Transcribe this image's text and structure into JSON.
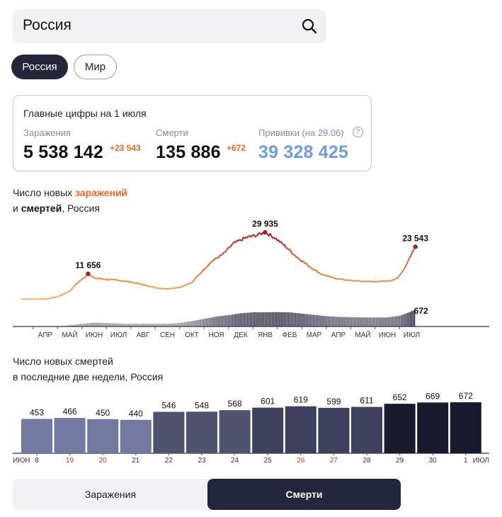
{
  "search": {
    "value": "Россия"
  },
  "chips": {
    "active": "Россия",
    "inactive": "Мир"
  },
  "stats": {
    "title": "Главные цифры на 1 июля",
    "infections": {
      "label": "Заражения",
      "value": "5 538 142",
      "delta": "+23 543"
    },
    "deaths": {
      "label": "Смерти",
      "value": "135 886",
      "delta": "+672"
    },
    "vaccinations": {
      "label": "Прививки (на 29.06)",
      "value": "39 328 425",
      "help": "?"
    }
  },
  "chart1_title": {
    "line1_prefix": "Число новых ",
    "line1_accent": "заражений",
    "line2_prefix": "и ",
    "line2_bold": "смертей",
    "line2_suffix": ", Россия"
  },
  "chart2_title": {
    "line1": "Число новых смертей",
    "line2": "в последние две недели, Россия"
  },
  "tabs": {
    "infections": "Заражения",
    "deaths": "Смерти"
  },
  "colors": {
    "dark": "#23253d",
    "orange": "#e06a2c",
    "vax": "#6f9bd8",
    "weekend": "#c0392b"
  },
  "chart_data": [
    {
      "type": "line",
      "title": "Число новых заражений и смертей, Россия",
      "x_ticks": [
        "АПР",
        "МАЙ",
        "ИЮН",
        "ИЮЛ",
        "АВГ",
        "СЕН",
        "ОКТ",
        "НОЯ",
        "ДЕК",
        "ЯНВ",
        "ФЕВ",
        "МАР",
        "АПР",
        "МАЙ",
        "ИЮН",
        "ИЮЛ"
      ],
      "series": [
        {
          "name": "заражений",
          "points": [
            [
              0,
              500
            ],
            [
              0.5,
              1500
            ],
            [
              1,
              4000
            ],
            [
              1.3,
              7500
            ],
            [
              1.6,
              10000
            ],
            [
              1.75,
              11656
            ],
            [
              2,
              9800
            ],
            [
              2.5,
              9200
            ],
            [
              3,
              8800
            ],
            [
              3.5,
              8000
            ],
            [
              4,
              6900
            ],
            [
              4.5,
              5500
            ],
            [
              5,
              5000
            ],
            [
              5.5,
              5700
            ],
            [
              6,
              7800
            ],
            [
              6.4,
              12500
            ],
            [
              6.8,
              17000
            ],
            [
              7.3,
              20500
            ],
            [
              7.7,
              25000
            ],
            [
              8.2,
              27500
            ],
            [
              8.7,
              28800
            ],
            [
              9.0,
              29935
            ],
            [
              9.4,
              27500
            ],
            [
              9.8,
              24000
            ],
            [
              10.3,
              19000
            ],
            [
              10.8,
              15000
            ],
            [
              11.3,
              11500
            ],
            [
              11.8,
              9800
            ],
            [
              12.4,
              8800
            ],
            [
              13,
              8300
            ],
            [
              13.6,
              8200
            ],
            [
              14.1,
              8600
            ],
            [
              14.4,
              9500
            ],
            [
              14.7,
              14000
            ],
            [
              14.95,
              19500
            ],
            [
              15.15,
              23543
            ]
          ],
          "peaks": [
            {
              "x": 1.75,
              "value": 11656,
              "label": "11 656"
            },
            {
              "x": 9.0,
              "value": 29935,
              "label": "29 935"
            },
            {
              "x": 15.15,
              "value": 23543,
              "label": "23 543"
            }
          ]
        },
        {
          "name": "смертей",
          "points": [
            [
              0,
              3
            ],
            [
              0.5,
              10
            ],
            [
              1,
              50
            ],
            [
              1.5,
              110
            ],
            [
              2,
              150
            ],
            [
              2.5,
              140
            ],
            [
              3,
              120
            ],
            [
              3.5,
              105
            ],
            [
              4,
              110
            ],
            [
              4.5,
              108
            ],
            [
              5,
              110
            ],
            [
              5.5,
              140
            ],
            [
              6,
              210
            ],
            [
              6.5,
              300
            ],
            [
              7,
              390
            ],
            [
              7.5,
              450
            ],
            [
              8,
              520
            ],
            [
              8.5,
              560
            ],
            [
              9,
              560
            ],
            [
              9.5,
              570
            ],
            [
              10,
              560
            ],
            [
              10.5,
              510
            ],
            [
              11,
              460
            ],
            [
              11.5,
              410
            ],
            [
              12,
              380
            ],
            [
              12.5,
              370
            ],
            [
              13,
              360
            ],
            [
              13.5,
              355
            ],
            [
              14,
              360
            ],
            [
              14.5,
              420
            ],
            [
              14.9,
              560
            ],
            [
              15.15,
              672
            ]
          ],
          "last": {
            "x": 15.15,
            "value": 672,
            "label": "672"
          }
        }
      ]
    },
    {
      "type": "bar",
      "title": "Число новых смертей в последние две недели, Россия",
      "categories": [
        "8",
        "19",
        "20",
        "21",
        "22",
        "23",
        "24",
        "25",
        "26",
        "27",
        "28",
        "29",
        "30",
        "1"
      ],
      "values": [
        453,
        466,
        450,
        440,
        546,
        548,
        568,
        601,
        619,
        599,
        611,
        652,
        669,
        672
      ],
      "labels": [
        "453",
        "466",
        "450",
        "440",
        "546",
        "548",
        "568",
        "601",
        "619",
        "599",
        "611",
        "652",
        "669",
        "672"
      ],
      "weekend": [
        false,
        true,
        true,
        false,
        false,
        false,
        false,
        false,
        true,
        true,
        false,
        false,
        false,
        false
      ],
      "month_left": "ИЮН",
      "month_right": "ИЮЛ",
      "ylim": [
        0,
        672
      ]
    }
  ]
}
